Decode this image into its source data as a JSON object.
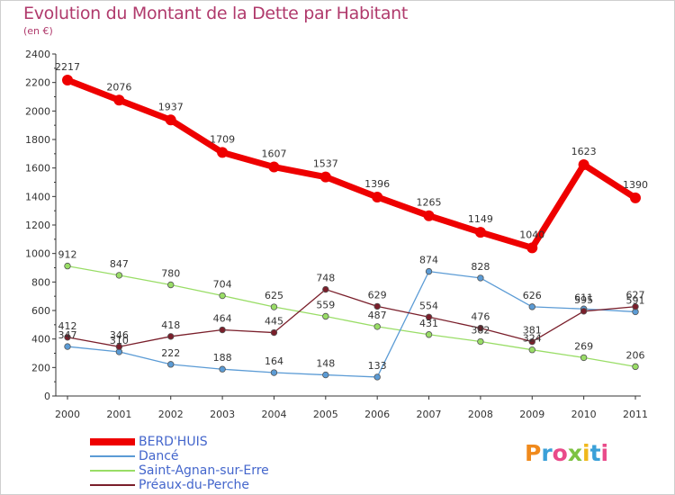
{
  "header": {
    "title": "Evolution du Montant de la Dette par Habitant",
    "subtitle": "(en €)"
  },
  "logo_text": "Proxiti",
  "colors": {
    "title": "#b03a6c",
    "legend_text": "#4466cc",
    "axis": "#333333"
  },
  "chart_data": {
    "type": "line",
    "title": "Evolution du Montant de la Dette par Habitant",
    "subtitle": "(en €)",
    "x": [
      "2000",
      "2001",
      "2002",
      "2003",
      "2004",
      "2005",
      "2006",
      "2007",
      "2008",
      "2009",
      "2010",
      "2011"
    ],
    "ylim": [
      0,
      2400
    ],
    "yticks": [
      "0",
      "200",
      "400",
      "600",
      "800",
      "1000",
      "1200",
      "1400",
      "1600",
      "1800",
      "2000",
      "2200",
      "2400"
    ],
    "grid": false,
    "legend_position": "bottom-left",
    "series": [
      {
        "name": "BERD'HUIS",
        "color": "#ee0000",
        "values": [
          2217,
          2076,
          1937,
          1709,
          1607,
          1537,
          1396,
          1265,
          1149,
          1040,
          1623,
          1390
        ],
        "labels": [
          "2217",
          "2076",
          "1937",
          "1709",
          "1607",
          "1537",
          "1396",
          "1265",
          "1149",
          "1040",
          "1623",
          "1390"
        ]
      },
      {
        "name": "Dancé",
        "color": "#5b9bd5",
        "values": [
          347,
          310,
          222,
          188,
          164,
          148,
          133,
          874,
          828,
          626,
          611,
          591
        ],
        "labels": [
          "347",
          "310",
          "222",
          "188",
          "164",
          "148",
          "133",
          "874",
          "828",
          "626",
          "611",
          "591"
        ]
      },
      {
        "name": "Saint-Agnan-sur-Erre",
        "color": "#99dd66",
        "values": [
          912,
          847,
          780,
          704,
          625,
          559,
          487,
          431,
          382,
          324,
          269,
          206
        ],
        "labels": [
          "912",
          "847",
          "780",
          "704",
          "625",
          "559",
          "487",
          "431",
          "382",
          "324",
          "269",
          "206"
        ]
      },
      {
        "name": "Préaux-du-Perche",
        "color": "#7a1f2b",
        "values": [
          412,
          346,
          418,
          464,
          445,
          748,
          629,
          554,
          476,
          381,
          595,
          627
        ],
        "labels": [
          "412",
          "346",
          "418",
          "464",
          "445",
          "748",
          "629",
          "554",
          "476",
          "381",
          "595",
          "627"
        ]
      }
    ]
  }
}
